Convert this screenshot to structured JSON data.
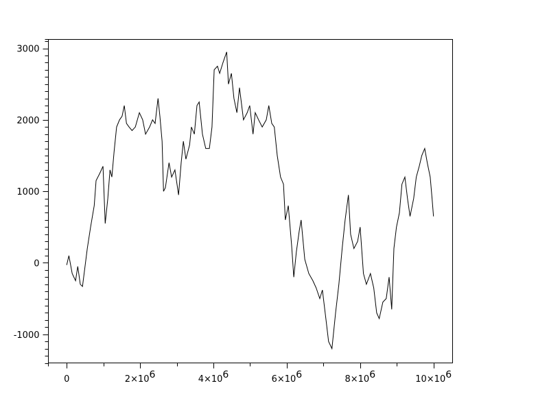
{
  "chart_data": {
    "type": "line",
    "title": "",
    "xlabel": "",
    "ylabel": "",
    "xlim": [
      -500000,
      10520000
    ],
    "ylim": [
      -1400,
      3125
    ],
    "grid": false,
    "line_color": "#000000",
    "x_ticks": [
      {
        "value": 0,
        "label": "0",
        "exp": ""
      },
      {
        "value": 2000000,
        "label": "2×10",
        "exp": "6"
      },
      {
        "value": 4000000,
        "label": "4×10",
        "exp": "6"
      },
      {
        "value": 6000000,
        "label": "6×10",
        "exp": "6"
      },
      {
        "value": 8000000,
        "label": "8×10",
        "exp": "6"
      },
      {
        "value": 10000000,
        "label": "10×10",
        "exp": "6"
      }
    ],
    "y_ticks": [
      {
        "value": -1000,
        "label": "-1000"
      },
      {
        "value": 0,
        "label": "0"
      },
      {
        "value": 1000,
        "label": "1000"
      },
      {
        "value": 2000,
        "label": "2000"
      },
      {
        "value": 3000,
        "label": "3000"
      }
    ],
    "series": [
      {
        "points": [
          [
            0,
            -30
          ],
          [
            60000,
            100
          ],
          [
            150000,
            -150
          ],
          [
            240000,
            -250
          ],
          [
            300000,
            -50
          ],
          [
            370000,
            -300
          ],
          [
            430000,
            -330
          ],
          [
            500000,
            -50
          ],
          [
            560000,
            200
          ],
          [
            650000,
            500
          ],
          [
            750000,
            800
          ],
          [
            800000,
            1150
          ],
          [
            900000,
            1250
          ],
          [
            990000,
            1350
          ],
          [
            1050000,
            550
          ],
          [
            1120000,
            900
          ],
          [
            1180000,
            1300
          ],
          [
            1230000,
            1200
          ],
          [
            1290000,
            1550
          ],
          [
            1360000,
            1900
          ],
          [
            1440000,
            2000
          ],
          [
            1510000,
            2050
          ],
          [
            1570000,
            2200
          ],
          [
            1630000,
            1950
          ],
          [
            1700000,
            1900
          ],
          [
            1780000,
            1850
          ],
          [
            1870000,
            1900
          ],
          [
            1980000,
            2100
          ],
          [
            2070000,
            2000
          ],
          [
            2150000,
            1800
          ],
          [
            2260000,
            1900
          ],
          [
            2340000,
            2000
          ],
          [
            2410000,
            1950
          ],
          [
            2490000,
            2300
          ],
          [
            2540000,
            2050
          ],
          [
            2600000,
            1700
          ],
          [
            2640000,
            1000
          ],
          [
            2690000,
            1050
          ],
          [
            2790000,
            1400
          ],
          [
            2860000,
            1200
          ],
          [
            2950000,
            1300
          ],
          [
            3050000,
            950
          ],
          [
            3120000,
            1400
          ],
          [
            3180000,
            1700
          ],
          [
            3250000,
            1450
          ],
          [
            3350000,
            1650
          ],
          [
            3400000,
            1900
          ],
          [
            3480000,
            1800
          ],
          [
            3550000,
            2200
          ],
          [
            3610000,
            2250
          ],
          [
            3700000,
            1800
          ],
          [
            3790000,
            1600
          ],
          [
            3890000,
            1600
          ],
          [
            3960000,
            1900
          ],
          [
            4020000,
            2700
          ],
          [
            4110000,
            2750
          ],
          [
            4170000,
            2650
          ],
          [
            4260000,
            2800
          ],
          [
            4360000,
            2950
          ],
          [
            4410000,
            2500
          ],
          [
            4490000,
            2650
          ],
          [
            4560000,
            2300
          ],
          [
            4640000,
            2100
          ],
          [
            4710000,
            2450
          ],
          [
            4820000,
            2000
          ],
          [
            4920000,
            2100
          ],
          [
            4990000,
            2200
          ],
          [
            5080000,
            1800
          ],
          [
            5140000,
            2100
          ],
          [
            5230000,
            2000
          ],
          [
            5330000,
            1900
          ],
          [
            5440000,
            2000
          ],
          [
            5510000,
            2200
          ],
          [
            5590000,
            1950
          ],
          [
            5660000,
            1900
          ],
          [
            5740000,
            1500
          ],
          [
            5830000,
            1200
          ],
          [
            5910000,
            1100
          ],
          [
            5960000,
            600
          ],
          [
            6040000,
            800
          ],
          [
            6130000,
            250
          ],
          [
            6190000,
            -200
          ],
          [
            6260000,
            150
          ],
          [
            6340000,
            450
          ],
          [
            6390000,
            600
          ],
          [
            6490000,
            50
          ],
          [
            6600000,
            -150
          ],
          [
            6710000,
            -250
          ],
          [
            6800000,
            -350
          ],
          [
            6900000,
            -500
          ],
          [
            6970000,
            -380
          ],
          [
            7070000,
            -800
          ],
          [
            7140000,
            -1100
          ],
          [
            7230000,
            -1200
          ],
          [
            7330000,
            -700
          ],
          [
            7420000,
            -300
          ],
          [
            7510000,
            200
          ],
          [
            7590000,
            600
          ],
          [
            7680000,
            950
          ],
          [
            7740000,
            400
          ],
          [
            7830000,
            200
          ],
          [
            7930000,
            300
          ],
          [
            8000000,
            500
          ],
          [
            8090000,
            -150
          ],
          [
            8170000,
            -300
          ],
          [
            8280000,
            -150
          ],
          [
            8370000,
            -350
          ],
          [
            8450000,
            -700
          ],
          [
            8520000,
            -780
          ],
          [
            8620000,
            -550
          ],
          [
            8710000,
            -500
          ],
          [
            8790000,
            -200
          ],
          [
            8860000,
            -650
          ],
          [
            8920000,
            200
          ],
          [
            8990000,
            500
          ],
          [
            9070000,
            700
          ],
          [
            9140000,
            1100
          ],
          [
            9220000,
            1200
          ],
          [
            9290000,
            900
          ],
          [
            9360000,
            650
          ],
          [
            9460000,
            900
          ],
          [
            9530000,
            1200
          ],
          [
            9610000,
            1350
          ],
          [
            9680000,
            1500
          ],
          [
            9760000,
            1600
          ],
          [
            9830000,
            1400
          ],
          [
            9910000,
            1200
          ],
          [
            9960000,
            900
          ],
          [
            10000000,
            650
          ]
        ]
      }
    ]
  }
}
